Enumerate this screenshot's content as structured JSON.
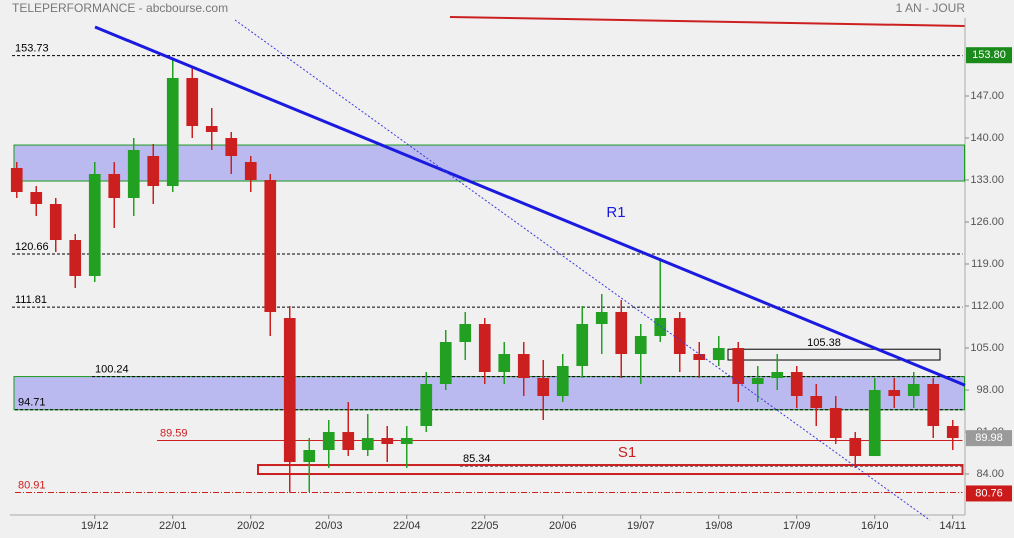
{
  "header": {
    "title": "TELEPERFORMANCE - abcbourse.com",
    "period": "1 AN - JOUR"
  },
  "chart_data": {
    "type": "candlestick",
    "categories": [
      null,
      null,
      null,
      null,
      "19/12",
      null,
      null,
      null,
      "22/01",
      null,
      null,
      null,
      "20/02",
      null,
      null,
      null,
      "20/03",
      null,
      null,
      null,
      "22/04",
      null,
      null,
      null,
      "22/05",
      null,
      null,
      null,
      "20/06",
      null,
      null,
      null,
      "19/07",
      null,
      null,
      null,
      "19/08",
      null,
      null,
      null,
      "17/09",
      null,
      null,
      null,
      "16/10",
      null,
      null,
      null,
      "14/11"
    ],
    "open": [
      135,
      131,
      129,
      123,
      117,
      134,
      130,
      137,
      132,
      150,
      142,
      140,
      136,
      133,
      110,
      86,
      88,
      91,
      88,
      90,
      89,
      92,
      99,
      106,
      109,
      101,
      104,
      100,
      97,
      102,
      109,
      111,
      104,
      107,
      110,
      104,
      103,
      105,
      99,
      100,
      101,
      97,
      95,
      90,
      87,
      98,
      97,
      99,
      92
    ],
    "high": [
      136,
      132,
      130,
      124,
      136,
      136,
      140,
      139,
      153,
      152,
      145,
      141,
      137,
      134,
      112,
      90,
      93,
      96,
      94,
      92,
      92,
      101,
      108,
      111,
      110,
      106,
      106,
      103,
      104,
      112,
      114,
      113,
      109,
      120,
      111,
      106,
      107,
      106,
      102,
      104,
      102,
      99,
      97,
      91,
      100,
      100,
      101,
      100,
      93
    ],
    "low": [
      130,
      127,
      121,
      115,
      116,
      125,
      127,
      129,
      131,
      140,
      138,
      134,
      131,
      107,
      80.9,
      81,
      85,
      87,
      87,
      86,
      85,
      91,
      98,
      103,
      99,
      99,
      97,
      93,
      96,
      100,
      104,
      100,
      99,
      106,
      101,
      100,
      102,
      96,
      96,
      98,
      95,
      92,
      89,
      85,
      87,
      95,
      95,
      90,
      88
    ],
    "close": [
      131,
      129,
      123,
      117,
      134,
      130,
      138,
      132,
      150,
      142,
      141,
      137,
      133,
      111,
      86,
      88,
      91,
      88,
      90,
      89,
      90,
      99,
      106,
      109,
      101,
      104,
      100,
      97,
      102,
      109,
      111,
      104,
      107,
      110,
      104,
      103,
      105,
      99,
      100,
      101,
      97,
      95,
      90,
      87,
      98,
      97,
      99,
      92,
      90
    ],
    "up_color": "#22a022",
    "down_color": "#cc2020",
    "ylim": [
      77.17,
      160
    ],
    "yticks": [
      {
        "value": 147,
        "label": "147.00"
      },
      {
        "value": 140,
        "label": "140.00"
      },
      {
        "value": 133,
        "label": "133.00"
      },
      {
        "value": 126,
        "label": "126.00"
      },
      {
        "value": 119,
        "label": "119.00"
      },
      {
        "value": 112,
        "label": "112.00"
      },
      {
        "value": 105,
        "label": "105.00"
      },
      {
        "value": 98,
        "label": "98.00"
      },
      {
        "value": 91,
        "label": "91.00"
      },
      {
        "value": 84,
        "label": "84.00"
      }
    ],
    "levels": [
      {
        "value": 153.73,
        "label": "153.73",
        "color": "#000000"
      },
      {
        "value": 120.66,
        "label": "120.66",
        "color": "#000000"
      },
      {
        "value": 111.81,
        "label": "111.81",
        "color": "#000000"
      },
      {
        "value": 100.24,
        "label": "100.24",
        "color": "#000000"
      },
      {
        "value": 94.71,
        "label": "94.71",
        "color": "#000000"
      },
      {
        "value": 89.59,
        "label": "89.59",
        "color": "#cc2020"
      },
      {
        "value": 85.34,
        "label": "85.34",
        "color": "#000000"
      },
      {
        "value": 80.91,
        "label": "80.91",
        "color": "#cc2020"
      }
    ],
    "zones": [
      {
        "low": 132.83,
        "high": 138.83,
        "color": "#babaf0"
      },
      {
        "low": 94.71,
        "high": 100.24,
        "color": "#babaf0"
      }
    ],
    "trendlines": [
      {
        "name": "R1",
        "color": "#1a1ae0",
        "values": [
          158.5,
          98.8
        ]
      },
      {
        "color": "#3a3ae0",
        "values": [
          159.67,
          76.3
        ]
      }
    ],
    "boxes": [
      {
        "name": "S1",
        "low": 84,
        "high": 85.5,
        "color": "#cc2020"
      },
      {
        "label": "105.38",
        "low": 103,
        "high": 104.8,
        "color": "#000000"
      }
    ],
    "price_tags": [
      {
        "value": 153.8,
        "label": "153.80",
        "color": "#1a8a1a"
      },
      {
        "value": 89.98,
        "label": "89.98",
        "color": "#9a9a9a"
      },
      {
        "value": 80.76,
        "label": "80.76",
        "color": "#cc1a1a"
      }
    ]
  }
}
